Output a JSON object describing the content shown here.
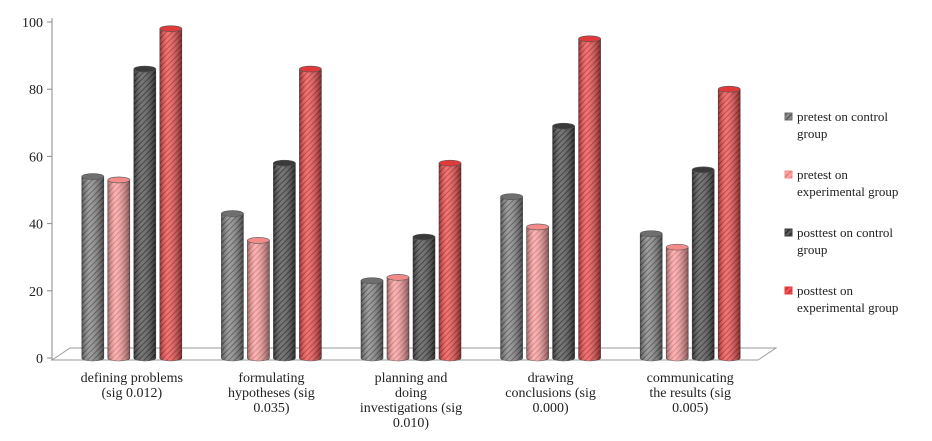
{
  "chart_data": {
    "type": "bar",
    "style": "3d-cylinder",
    "categories": [
      [
        "defining problems",
        "(sig 0.012)"
      ],
      [
        "formulating",
        "hypotheses (sig",
        "0.035)"
      ],
      [
        "planning and",
        "doing",
        "investigations (sig",
        "0.010)"
      ],
      [
        "drawing",
        "conclusions (sig",
        "0.000)"
      ],
      [
        "communicating",
        "the results (sig",
        "0.005)"
      ]
    ],
    "series": [
      {
        "name": [
          "pretest on control",
          "group"
        ],
        "values": [
          54,
          43,
          23,
          48,
          37
        ],
        "color": "#6f6f6f",
        "pattern": "gray"
      },
      {
        "name": [
          "pretest on",
          "experimental group"
        ],
        "values": [
          53,
          35,
          24,
          39,
          33
        ],
        "color": "#f48b8b",
        "pattern": "pink"
      },
      {
        "name": [
          "posttest on control",
          "group"
        ],
        "values": [
          86,
          58,
          36,
          69,
          56
        ],
        "color": "#3a3a3a",
        "pattern": "dark"
      },
      {
        "name": [
          "posttest on",
          "experimental group"
        ],
        "values": [
          98,
          86,
          58,
          95,
          80
        ],
        "color": "#e03a3a",
        "pattern": "red"
      }
    ],
    "y_ticks": [
      "0",
      "20",
      "40",
      "60",
      "80",
      "100"
    ],
    "ylim": [
      0,
      100
    ],
    "grid": false,
    "legend_position": "right"
  }
}
